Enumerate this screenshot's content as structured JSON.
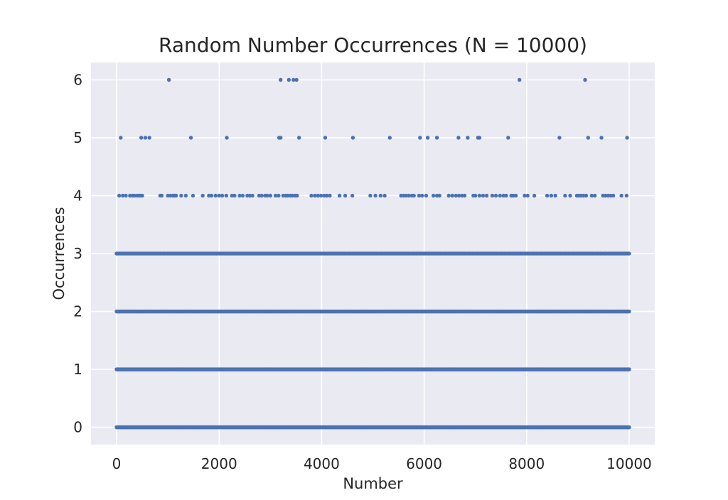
{
  "chart_data": {
    "type": "scatter",
    "title": "Random Number Occurrences (N = 10000)",
    "xlabel": "Number",
    "ylabel": "Occurrences",
    "xlim": [
      -500,
      10500
    ],
    "ylim": [
      -0.3,
      6.3
    ],
    "x_ticks": [
      0,
      2000,
      4000,
      6000,
      8000,
      10000
    ],
    "y_ticks": [
      0,
      1,
      2,
      3,
      4,
      5,
      6
    ],
    "grid": true,
    "legend": "none",
    "background": "#eaeaf2",
    "grid_color": "#ffffff",
    "marker_color": "#4c72b0",
    "series": [
      {
        "points": [
          [
            0,
            0
          ],
          [
            0,
            1
          ],
          [
            0,
            2
          ],
          [
            0,
            3
          ],
          [
            10000,
            0
          ],
          [
            10000,
            1
          ],
          [
            10000,
            2
          ],
          [
            10000,
            3
          ],
          [
            50,
            4
          ],
          [
            120,
            4
          ],
          [
            180,
            4
          ],
          [
            260,
            4
          ],
          [
            310,
            4
          ],
          [
            350,
            4
          ],
          [
            400,
            4
          ],
          [
            430,
            4
          ],
          [
            460,
            4
          ],
          [
            500,
            4
          ],
          [
            850,
            4
          ],
          [
            880,
            4
          ],
          [
            1000,
            4
          ],
          [
            1050,
            4
          ],
          [
            1100,
            4
          ],
          [
            1130,
            4
          ],
          [
            1160,
            4
          ],
          [
            1260,
            4
          ],
          [
            1350,
            4
          ],
          [
            1490,
            4
          ],
          [
            1680,
            4
          ],
          [
            1800,
            4
          ],
          [
            1850,
            4
          ],
          [
            1930,
            4
          ],
          [
            2000,
            4
          ],
          [
            2060,
            4
          ],
          [
            2140,
            4
          ],
          [
            2250,
            4
          ],
          [
            2300,
            4
          ],
          [
            2400,
            4
          ],
          [
            2460,
            4
          ],
          [
            2550,
            4
          ],
          [
            2600,
            4
          ],
          [
            2650,
            4
          ],
          [
            2780,
            4
          ],
          [
            2830,
            4
          ],
          [
            2900,
            4
          ],
          [
            2940,
            4
          ],
          [
            3000,
            4
          ],
          [
            3100,
            4
          ],
          [
            3160,
            4
          ],
          [
            3250,
            4
          ],
          [
            3300,
            4
          ],
          [
            3340,
            4
          ],
          [
            3390,
            4
          ],
          [
            3430,
            4
          ],
          [
            3480,
            4
          ],
          [
            3520,
            4
          ],
          [
            3800,
            4
          ],
          [
            3870,
            4
          ],
          [
            3930,
            4
          ],
          [
            3990,
            4
          ],
          [
            4050,
            4
          ],
          [
            4100,
            4
          ],
          [
            4160,
            4
          ],
          [
            4350,
            4
          ],
          [
            4460,
            4
          ],
          [
            4600,
            4
          ],
          [
            4950,
            4
          ],
          [
            5050,
            4
          ],
          [
            5150,
            4
          ],
          [
            5230,
            4
          ],
          [
            5550,
            4
          ],
          [
            5600,
            4
          ],
          [
            5650,
            4
          ],
          [
            5700,
            4
          ],
          [
            5760,
            4
          ],
          [
            5800,
            4
          ],
          [
            5900,
            4
          ],
          [
            5960,
            4
          ],
          [
            6040,
            4
          ],
          [
            6180,
            4
          ],
          [
            6250,
            4
          ],
          [
            6300,
            4
          ],
          [
            6480,
            4
          ],
          [
            6550,
            4
          ],
          [
            6620,
            4
          ],
          [
            6680,
            4
          ],
          [
            6740,
            4
          ],
          [
            6790,
            4
          ],
          [
            6960,
            4
          ],
          [
            7000,
            4
          ],
          [
            7080,
            4
          ],
          [
            7150,
            4
          ],
          [
            7220,
            4
          ],
          [
            7330,
            4
          ],
          [
            7400,
            4
          ],
          [
            7480,
            4
          ],
          [
            7550,
            4
          ],
          [
            7600,
            4
          ],
          [
            7700,
            4
          ],
          [
            7740,
            4
          ],
          [
            7790,
            4
          ],
          [
            7960,
            4
          ],
          [
            8020,
            4
          ],
          [
            8150,
            4
          ],
          [
            8400,
            4
          ],
          [
            8480,
            4
          ],
          [
            8560,
            4
          ],
          [
            8750,
            4
          ],
          [
            8850,
            4
          ],
          [
            8980,
            4
          ],
          [
            9020,
            4
          ],
          [
            9060,
            4
          ],
          [
            9110,
            4
          ],
          [
            9160,
            4
          ],
          [
            9270,
            4
          ],
          [
            9330,
            4
          ],
          [
            9490,
            4
          ],
          [
            9540,
            4
          ],
          [
            9590,
            4
          ],
          [
            9640,
            4
          ],
          [
            9690,
            4
          ],
          [
            9850,
            4
          ],
          [
            9950,
            4
          ],
          [
            80,
            5
          ],
          [
            480,
            5
          ],
          [
            560,
            5
          ],
          [
            640,
            5
          ],
          [
            1450,
            5
          ],
          [
            2150,
            5
          ],
          [
            3170,
            5
          ],
          [
            3200,
            5
          ],
          [
            3560,
            5
          ],
          [
            4070,
            5
          ],
          [
            4610,
            5
          ],
          [
            5330,
            5
          ],
          [
            5920,
            5
          ],
          [
            6070,
            5
          ],
          [
            6250,
            5
          ],
          [
            6670,
            5
          ],
          [
            6850,
            5
          ],
          [
            7050,
            5
          ],
          [
            7080,
            5
          ],
          [
            7640,
            5
          ],
          [
            8640,
            5
          ],
          [
            9200,
            5
          ],
          [
            9460,
            5
          ],
          [
            9960,
            5
          ],
          [
            1020,
            6
          ],
          [
            3200,
            6
          ],
          [
            3360,
            6
          ],
          [
            3450,
            6
          ],
          [
            3510,
            6
          ],
          [
            7860,
            6
          ],
          [
            9140,
            6
          ]
        ],
        "bands": [
          {
            "y": 0,
            "from": 0,
            "to": 10000,
            "step": 8
          },
          {
            "y": 1,
            "from": 0,
            "to": 10000,
            "step": 8
          },
          {
            "y": 2,
            "from": 0,
            "to": 10000,
            "step": 9
          },
          {
            "y": 3,
            "from": 0,
            "to": 10000,
            "step": 26
          }
        ]
      }
    ]
  }
}
